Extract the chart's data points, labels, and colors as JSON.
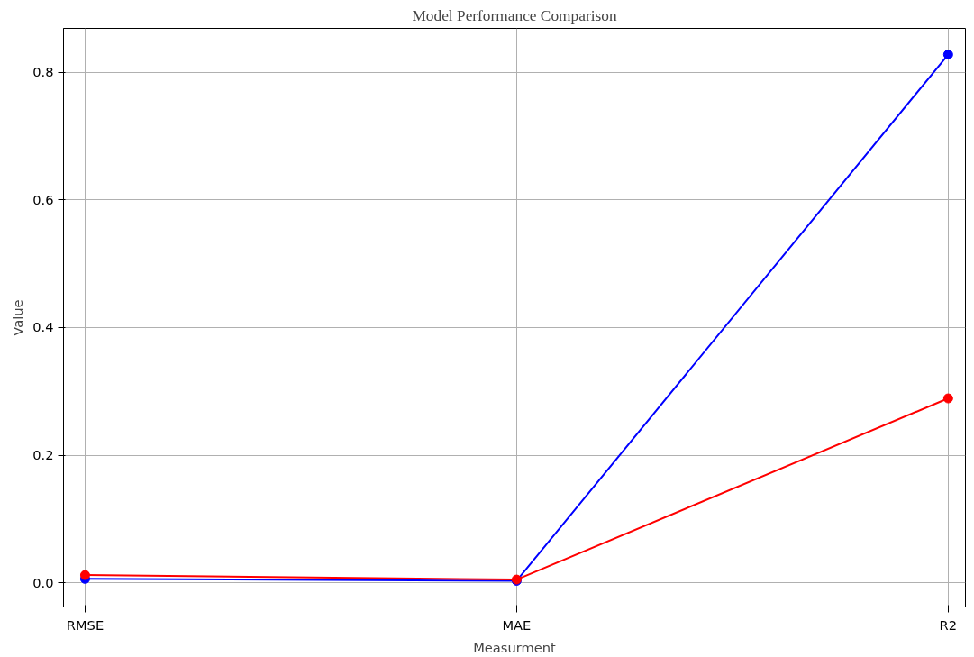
{
  "chart_data": {
    "type": "line",
    "title": "Model Performance Comparison",
    "xlabel": "Measurment",
    "ylabel": "Value",
    "categories": [
      "RMSE",
      "MAE",
      "R2"
    ],
    "series": [
      {
        "color": "#0000ff",
        "values": [
          0.006,
          0.003,
          0.828
        ]
      },
      {
        "color": "#ff0000",
        "values": [
          0.012,
          0.005,
          0.289
        ]
      }
    ],
    "ylim": [
      -0.038,
      0.869
    ],
    "yticks": [
      {
        "value": 0,
        "label": "0.0"
      },
      0.2,
      0.4,
      0.6,
      0.8
    ],
    "grid": true,
    "marker": "circle",
    "line_style": "solid"
  }
}
